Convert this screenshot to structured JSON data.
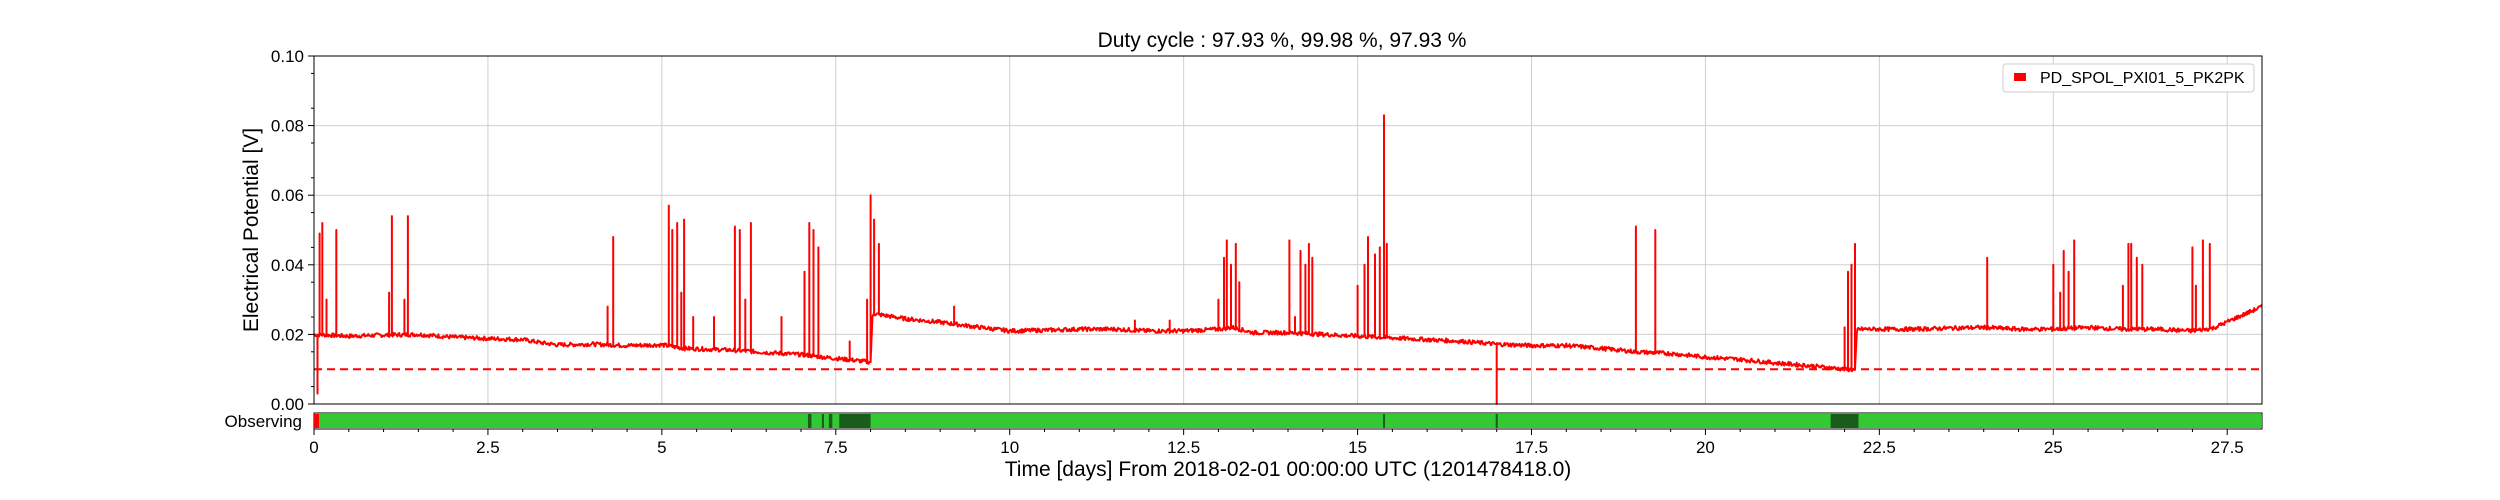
{
  "chart_data": {
    "type": "line",
    "title": "Duty cycle : 97.93 %, 99.98 %, 97.93 %",
    "xlabel": "Time [days] From 2018-02-01 00:00:00 UTC (1201478418.0)",
    "ylabel": "Electrical Potential [V]",
    "xlim": [
      0,
      28
    ],
    "ylim": [
      0,
      0.1
    ],
    "xticks": [
      "0",
      "2.5",
      "5",
      "7.5",
      "10",
      "12.5",
      "15",
      "17.5",
      "20",
      "22.5",
      "25",
      "27.5"
    ],
    "xtick_values": [
      0,
      2.5,
      5,
      7.5,
      10,
      12.5,
      15,
      17.5,
      20,
      22.5,
      25,
      27.5
    ],
    "yticks": [
      "0.00",
      "0.02",
      "0.04",
      "0.06",
      "0.08",
      "0.10"
    ],
    "ytick_values": [
      0,
      0.02,
      0.04,
      0.06,
      0.08,
      0.1
    ],
    "grid": true,
    "legend_position": "top-right",
    "series": [
      {
        "name": "PD_SPOL_PXI01_5_PK2PK",
        "color": "#ff0000",
        "baseline": [
          [
            0,
            0.02
          ],
          [
            0.5,
            0.0195
          ],
          [
            1,
            0.0198
          ],
          [
            1.5,
            0.02
          ],
          [
            2,
            0.0192
          ],
          [
            2.5,
            0.0188
          ],
          [
            3,
            0.0185
          ],
          [
            3.3,
            0.0175
          ],
          [
            3.5,
            0.017
          ],
          [
            4,
            0.0172
          ],
          [
            4.5,
            0.0168
          ],
          [
            5,
            0.017
          ],
          [
            5.3,
            0.016
          ],
          [
            6,
            0.0155
          ],
          [
            6.5,
            0.0148
          ],
          [
            7,
            0.0142
          ],
          [
            7.4,
            0.0133
          ],
          [
            7.8,
            0.0125
          ],
          [
            8.0,
            0.012
          ],
          [
            8.03,
            0.026
          ],
          [
            8.5,
            0.0245
          ],
          [
            9,
            0.0235
          ],
          [
            9.5,
            0.0222
          ],
          [
            10,
            0.021
          ],
          [
            10.5,
            0.0212
          ],
          [
            11,
            0.0215
          ],
          [
            11.5,
            0.0215
          ],
          [
            12,
            0.021
          ],
          [
            12.5,
            0.021
          ],
          [
            13,
            0.0215
          ],
          [
            13.2,
            0.022
          ],
          [
            13.5,
            0.0205
          ],
          [
            14,
            0.0205
          ],
          [
            14.5,
            0.02
          ],
          [
            15,
            0.0195
          ],
          [
            15.5,
            0.019
          ],
          [
            16,
            0.0185
          ],
          [
            16.5,
            0.018
          ],
          [
            17,
            0.0172
          ],
          [
            17.5,
            0.0168
          ],
          [
            18,
            0.0168
          ],
          [
            18.5,
            0.016
          ],
          [
            19,
            0.015
          ],
          [
            19.5,
            0.0145
          ],
          [
            20,
            0.0135
          ],
          [
            20.5,
            0.0128
          ],
          [
            21,
            0.0118
          ],
          [
            21.5,
            0.011
          ],
          [
            22,
            0.01
          ],
          [
            22.15,
            0.0098
          ],
          [
            22.18,
            0.0215
          ],
          [
            23,
            0.0215
          ],
          [
            23.5,
            0.0218
          ],
          [
            24,
            0.022
          ],
          [
            24.5,
            0.0215
          ],
          [
            25,
            0.0215
          ],
          [
            25.5,
            0.022
          ],
          [
            26,
            0.0215
          ],
          [
            26.5,
            0.0215
          ],
          [
            27,
            0.021
          ],
          [
            27.3,
            0.0218
          ],
          [
            27.6,
            0.0245
          ],
          [
            28,
            0.028
          ]
        ],
        "spikes": [
          [
            0.05,
            0.003
          ],
          [
            0.08,
            0.049
          ],
          [
            0.12,
            0.052
          ],
          [
            0.18,
            0.03
          ],
          [
            0.32,
            0.05
          ],
          [
            1.08,
            0.032
          ],
          [
            1.12,
            0.054
          ],
          [
            1.3,
            0.03
          ],
          [
            1.35,
            0.054
          ],
          [
            4.22,
            0.028
          ],
          [
            4.3,
            0.048
          ],
          [
            5.1,
            0.057
          ],
          [
            5.15,
            0.05
          ],
          [
            5.22,
            0.052
          ],
          [
            5.28,
            0.032
          ],
          [
            5.32,
            0.053
          ],
          [
            5.45,
            0.025
          ],
          [
            5.75,
            0.025
          ],
          [
            6.05,
            0.051
          ],
          [
            6.12,
            0.05
          ],
          [
            6.2,
            0.03
          ],
          [
            6.28,
            0.052
          ],
          [
            6.72,
            0.025
          ],
          [
            7.05,
            0.038
          ],
          [
            7.12,
            0.052
          ],
          [
            7.18,
            0.05
          ],
          [
            7.25,
            0.045
          ],
          [
            7.7,
            0.018
          ],
          [
            7.95,
            0.03
          ],
          [
            8.0,
            0.06
          ],
          [
            8.05,
            0.053
          ],
          [
            8.12,
            0.046
          ],
          [
            9.2,
            0.028
          ],
          [
            11.8,
            0.024
          ],
          [
            12.3,
            0.024
          ],
          [
            13.0,
            0.03
          ],
          [
            13.08,
            0.042
          ],
          [
            13.12,
            0.047
          ],
          [
            13.18,
            0.04
          ],
          [
            13.25,
            0.046
          ],
          [
            13.3,
            0.035
          ],
          [
            14.02,
            0.047
          ],
          [
            14.1,
            0.025
          ],
          [
            14.18,
            0.044
          ],
          [
            14.25,
            0.04
          ],
          [
            14.3,
            0.046
          ],
          [
            14.35,
            0.042
          ],
          [
            15.0,
            0.034
          ],
          [
            15.1,
            0.04
          ],
          [
            15.15,
            0.048
          ],
          [
            15.25,
            0.043
          ],
          [
            15.32,
            0.045
          ],
          [
            15.38,
            0.083
          ],
          [
            15.42,
            0.046
          ],
          [
            17.0,
            0.0
          ],
          [
            19.0,
            0.051
          ],
          [
            19.28,
            0.05
          ],
          [
            22.0,
            0.022
          ],
          [
            22.05,
            0.038
          ],
          [
            22.1,
            0.04
          ],
          [
            22.15,
            0.046
          ],
          [
            24.05,
            0.042
          ],
          [
            25.0,
            0.04
          ],
          [
            25.1,
            0.032
          ],
          [
            25.15,
            0.044
          ],
          [
            25.22,
            0.038
          ],
          [
            25.3,
            0.047
          ],
          [
            26.0,
            0.034
          ],
          [
            26.08,
            0.046
          ],
          [
            26.12,
            0.046
          ],
          [
            26.2,
            0.042
          ],
          [
            26.28,
            0.04
          ],
          [
            27.0,
            0.045
          ],
          [
            27.05,
            0.034
          ],
          [
            27.15,
            0.047
          ],
          [
            27.25,
            0.046
          ]
        ]
      }
    ],
    "threshold": {
      "value": 0.01,
      "color": "#ff0000",
      "style": "dashed"
    },
    "state_bar": {
      "label": "Observing",
      "color": "#33c933",
      "gap_color": "#1a5c1a",
      "gaps": [
        [
          7.1,
          7.15
        ],
        [
          7.3,
          7.33
        ],
        [
          7.4,
          7.45
        ],
        [
          7.55,
          8.0
        ],
        [
          21.8,
          22.2
        ]
      ],
      "marks": [
        15.38,
        17.0
      ]
    }
  }
}
